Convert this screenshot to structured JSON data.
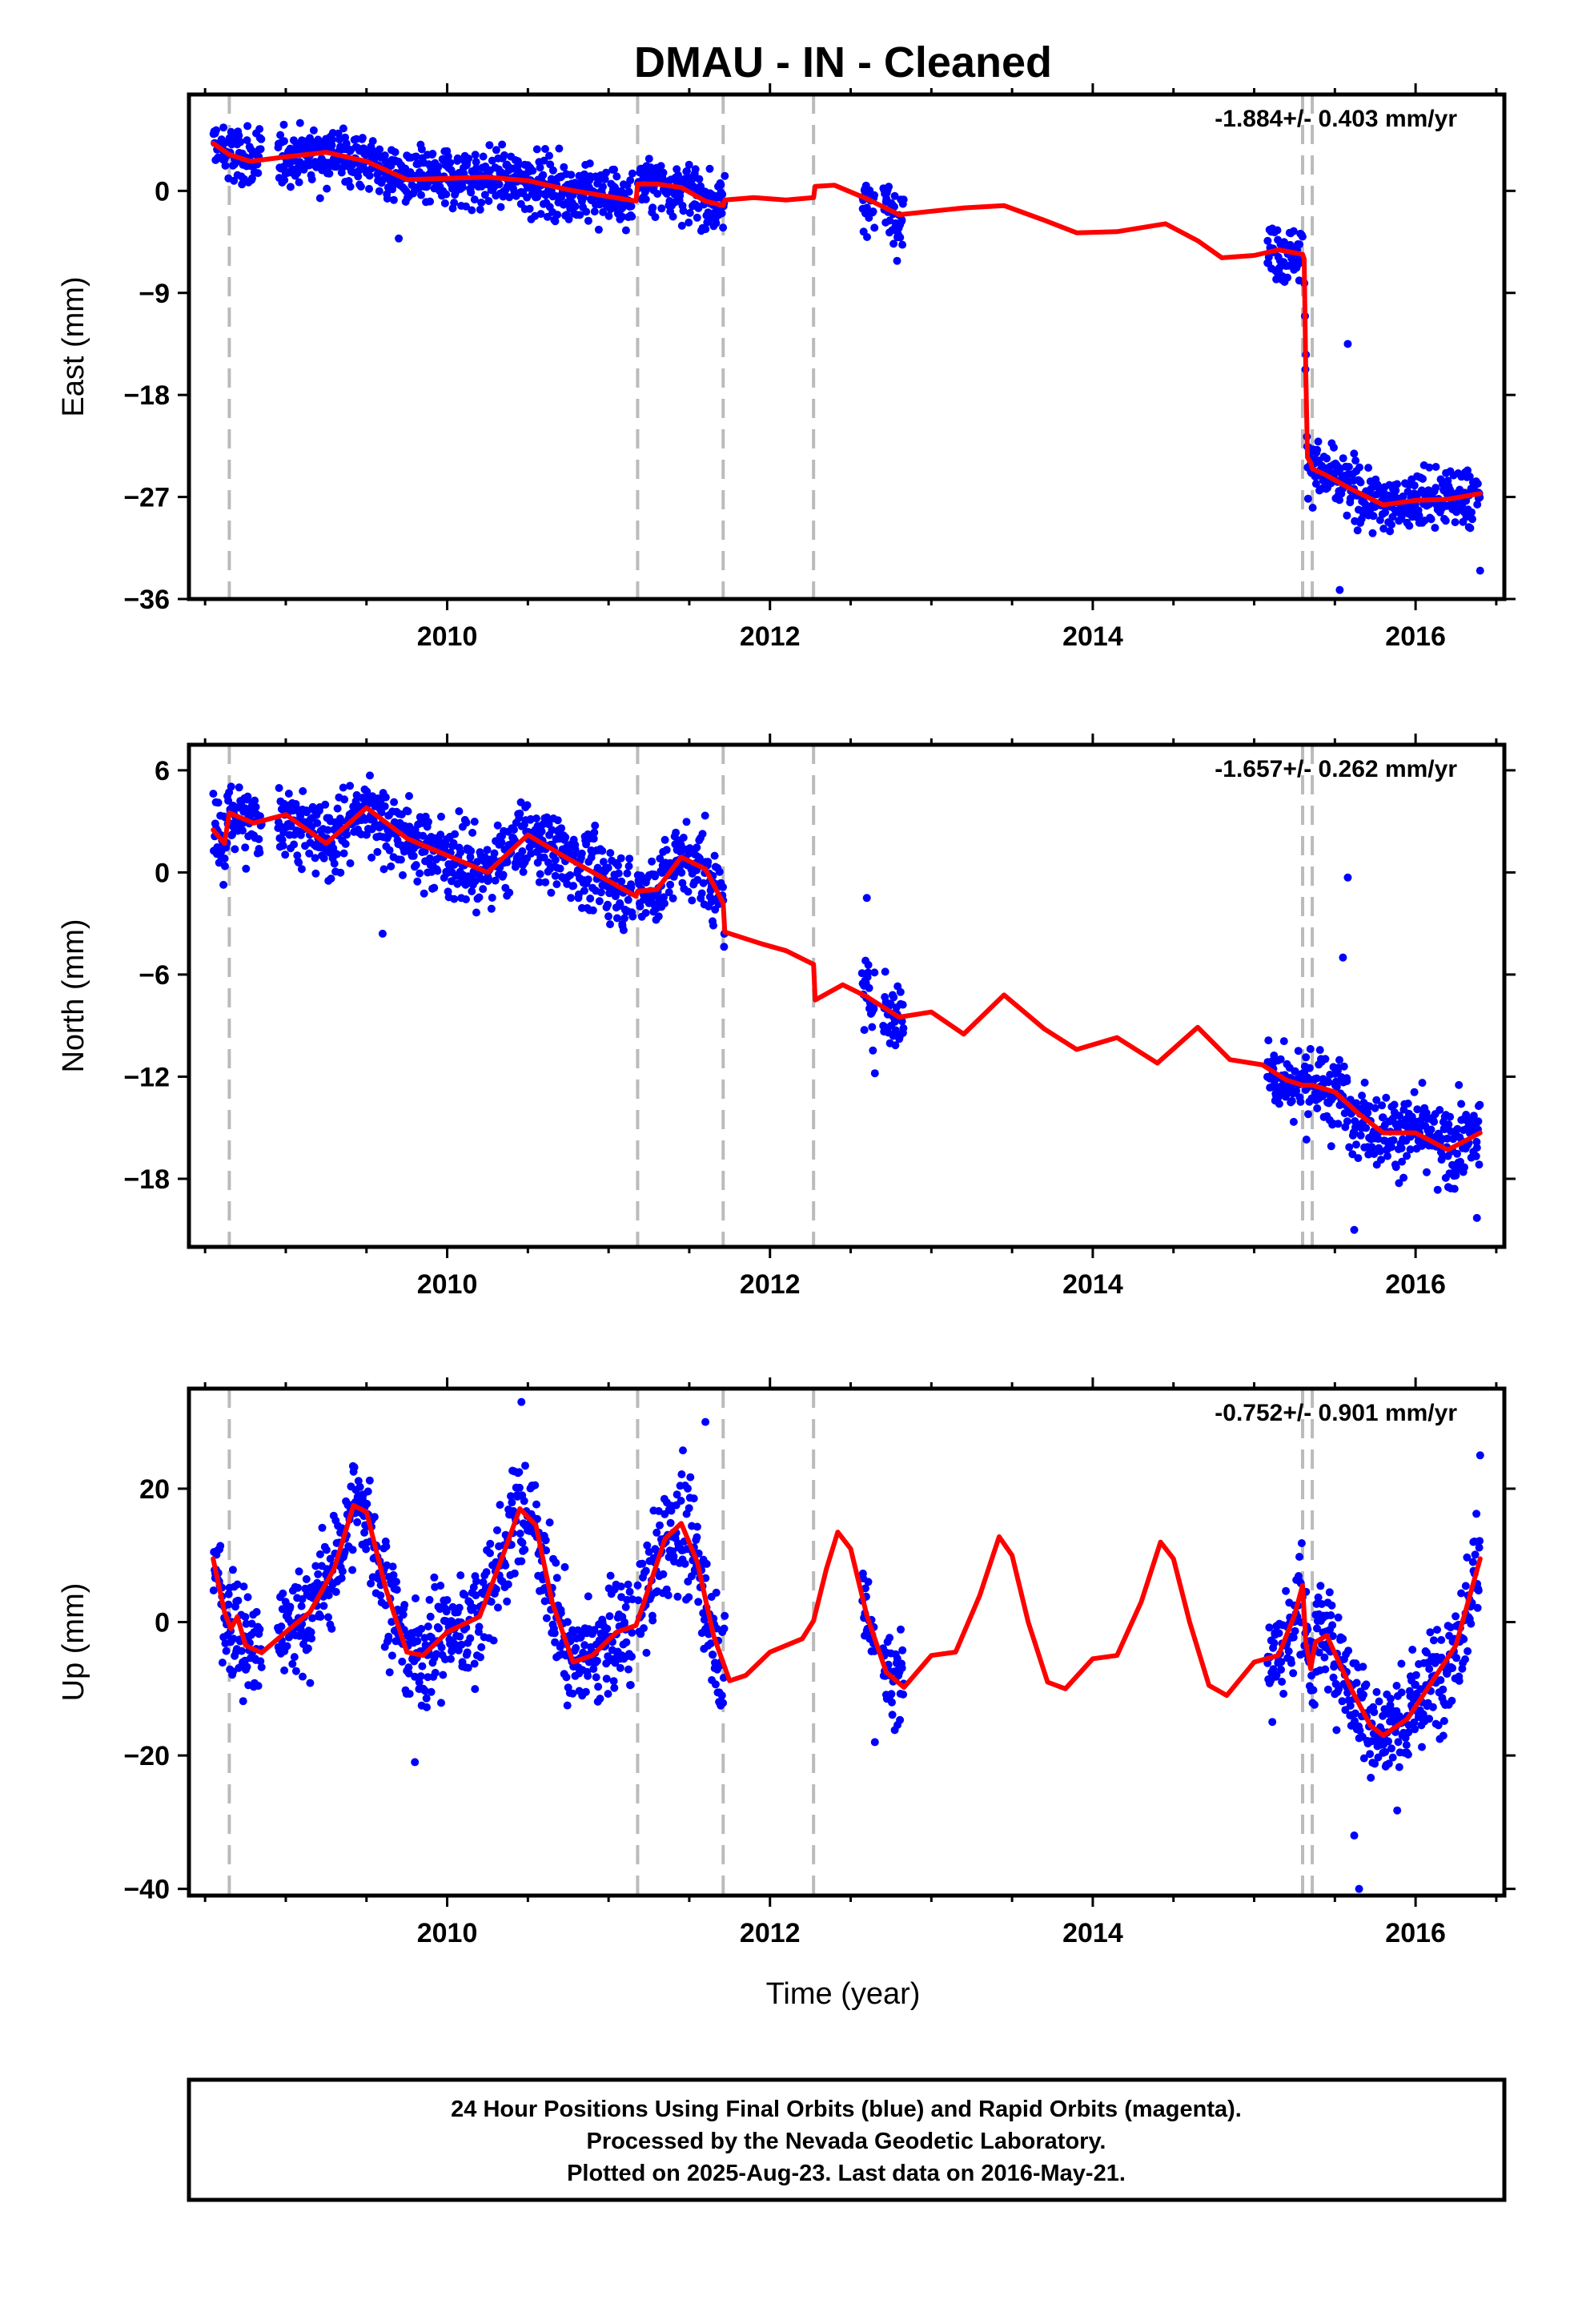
{
  "title": "DMAU  - IN - Cleaned",
  "xlabel": "Time (year)",
  "footer": [
    "24 Hour Positions Using Final Orbits (blue) and Rapid Orbits (magenta).",
    "Processed by the Nevada Geodetic Laboratory.",
    "Plotted on 2025-Aug-23. Last data on 2016-May-21."
  ],
  "colors": {
    "points": "#0000ff",
    "model": "#ff0000",
    "breaks": "#bbbbbb",
    "frame": "#000000"
  },
  "chart_data": [
    {
      "type": "scatter",
      "component": "East",
      "ylabel": "East (mm)",
      "rate_label": "-1.884+/- 0.403 mm/yr",
      "xlim": [
        2008.4,
        2016.55
      ],
      "ylim": [
        -36,
        8.5
      ],
      "yticks": [
        -36,
        -27,
        -18,
        -9,
        0
      ],
      "xticks": [
        2010,
        2012,
        2014,
        2016
      ],
      "breaks": [
        2008.65,
        2011.18,
        2011.71,
        2012.27,
        2015.3,
        2015.36
      ],
      "segments": [
        [
          2008.55,
          2008.85
        ],
        [
          2008.95,
          2011.15
        ],
        [
          2011.18,
          2011.72
        ],
        [
          2012.57,
          2012.65
        ],
        [
          2012.7,
          2012.83
        ],
        [
          2015.08,
          2015.3
        ],
        [
          2015.31,
          2016.4
        ]
      ],
      "noise": 1.3,
      "outliers": [
        [
          2015.58,
          -13.5
        ],
        [
          2015.53,
          -35.2
        ],
        [
          2016.4,
          -33.5
        ],
        [
          2009.7,
          -4.2
        ],
        [
          2012.58,
          -3.6
        ]
      ],
      "model": [
        [
          2008.55,
          4.2
        ],
        [
          2008.65,
          3.2
        ],
        [
          2008.78,
          2.6
        ],
        [
          2009.0,
          3.0
        ],
        [
          2009.25,
          3.4
        ],
        [
          2009.5,
          2.6
        ],
        [
          2009.75,
          1.0
        ],
        [
          2010.0,
          1.1
        ],
        [
          2010.25,
          1.2
        ],
        [
          2010.5,
          0.9
        ],
        [
          2010.75,
          0.1
        ],
        [
          2011.0,
          -0.5
        ],
        [
          2011.17,
          -0.9
        ],
        [
          2011.18,
          0.6
        ],
        [
          2011.3,
          0.6
        ],
        [
          2011.45,
          0.3
        ],
        [
          2011.6,
          -0.9
        ],
        [
          2011.71,
          -1.3
        ],
        [
          2011.72,
          -0.8
        ],
        [
          2011.9,
          -0.6
        ],
        [
          2012.1,
          -0.8
        ],
        [
          2012.27,
          -0.6
        ],
        [
          2012.28,
          0.4
        ],
        [
          2012.4,
          0.5
        ],
        [
          2012.6,
          -0.7
        ],
        [
          2012.8,
          -2.1
        ],
        [
          2013.0,
          -1.8
        ],
        [
          2013.2,
          -1.5
        ],
        [
          2013.45,
          -1.3
        ],
        [
          2013.7,
          -2.6
        ],
        [
          2013.9,
          -3.7
        ],
        [
          2014.15,
          -3.6
        ],
        [
          2014.45,
          -2.9
        ],
        [
          2014.65,
          -4.4
        ],
        [
          2014.8,
          -5.9
        ],
        [
          2015.0,
          -5.7
        ],
        [
          2015.15,
          -5.2
        ],
        [
          2015.3,
          -5.6
        ],
        [
          2015.31,
          -6.0
        ],
        [
          2015.32,
          -16.0
        ],
        [
          2015.33,
          -23.5
        ],
        [
          2015.35,
          -24.0
        ],
        [
          2015.36,
          -24.5
        ],
        [
          2015.45,
          -25.1
        ],
        [
          2015.6,
          -26.3
        ],
        [
          2015.8,
          -27.7
        ],
        [
          2016.0,
          -27.3
        ],
        [
          2016.2,
          -27.2
        ],
        [
          2016.4,
          -26.7
        ]
      ]
    },
    {
      "type": "scatter",
      "component": "North",
      "ylabel": "North (mm)",
      "rate_label": "-1.657+/- 0.262 mm/yr",
      "xlim": [
        2008.4,
        2016.55
      ],
      "ylim": [
        -22,
        7.5
      ],
      "yticks": [
        -18,
        -12,
        -6,
        0,
        6
      ],
      "xticks": [
        2010,
        2012,
        2014,
        2016
      ],
      "breaks": [
        2008.65,
        2011.18,
        2011.71,
        2012.27,
        2015.3,
        2015.36
      ],
      "segments": [
        [
          2008.55,
          2008.85
        ],
        [
          2008.95,
          2011.15
        ],
        [
          2011.18,
          2011.72
        ],
        [
          2012.57,
          2012.65
        ],
        [
          2012.7,
          2012.83
        ],
        [
          2015.08,
          2015.3
        ],
        [
          2015.31,
          2016.4
        ]
      ],
      "noise": 1.1,
      "outliers": [
        [
          2015.58,
          -0.3
        ],
        [
          2015.55,
          -5.0
        ],
        [
          2016.38,
          -20.3
        ],
        [
          2015.62,
          -21.0
        ],
        [
          2009.6,
          -3.6
        ],
        [
          2012.6,
          -1.5
        ],
        [
          2012.65,
          -11.8
        ]
      ],
      "model": [
        [
          2008.55,
          2.5
        ],
        [
          2008.62,
          1.7
        ],
        [
          2008.65,
          3.5
        ],
        [
          2008.8,
          2.9
        ],
        [
          2009.0,
          3.4
        ],
        [
          2009.25,
          1.7
        ],
        [
          2009.5,
          3.8
        ],
        [
          2009.75,
          2.0
        ],
        [
          2010.0,
          1.0
        ],
        [
          2010.25,
          0.0
        ],
        [
          2010.5,
          2.2
        ],
        [
          2010.75,
          0.8
        ],
        [
          2011.0,
          -0.5
        ],
        [
          2011.17,
          -1.4
        ],
        [
          2011.18,
          -1.1
        ],
        [
          2011.3,
          -1.0
        ],
        [
          2011.45,
          0.9
        ],
        [
          2011.6,
          0.2
        ],
        [
          2011.71,
          -1.8
        ],
        [
          2011.72,
          -3.5
        ],
        [
          2011.95,
          -4.2
        ],
        [
          2012.1,
          -4.6
        ],
        [
          2012.27,
          -5.4
        ],
        [
          2012.28,
          -7.5
        ],
        [
          2012.45,
          -6.6
        ],
        [
          2012.6,
          -7.3
        ],
        [
          2012.8,
          -8.5
        ],
        [
          2013.0,
          -8.2
        ],
        [
          2013.2,
          -9.5
        ],
        [
          2013.45,
          -7.2
        ],
        [
          2013.7,
          -9.2
        ],
        [
          2013.9,
          -10.4
        ],
        [
          2014.15,
          -9.7
        ],
        [
          2014.4,
          -11.2
        ],
        [
          2014.65,
          -9.1
        ],
        [
          2014.85,
          -11.0
        ],
        [
          2015.05,
          -11.3
        ],
        [
          2015.2,
          -12.2
        ],
        [
          2015.3,
          -12.5
        ],
        [
          2015.36,
          -12.5
        ],
        [
          2015.5,
          -12.9
        ],
        [
          2015.65,
          -14.2
        ],
        [
          2015.8,
          -15.3
        ],
        [
          2016.0,
          -15.3
        ],
        [
          2016.2,
          -16.3
        ],
        [
          2016.4,
          -15.3
        ]
      ]
    },
    {
      "type": "scatter",
      "component": "Up",
      "ylabel": "Up (mm)",
      "rate_label": "-0.752+/- 0.901 mm/yr",
      "xlim": [
        2008.4,
        2016.55
      ],
      "ylim": [
        -41,
        35
      ],
      "yticks": [
        -40,
        -20,
        0,
        20
      ],
      "xticks": [
        2010,
        2012,
        2014,
        2016
      ],
      "breaks": [
        2008.65,
        2011.18,
        2011.71,
        2012.27,
        2015.3,
        2015.36
      ],
      "segments": [
        [
          2008.55,
          2008.85
        ],
        [
          2008.95,
          2011.15
        ],
        [
          2011.18,
          2011.72
        ],
        [
          2012.57,
          2012.65
        ],
        [
          2012.7,
          2012.83
        ],
        [
          2015.08,
          2015.3
        ],
        [
          2015.31,
          2016.4
        ]
      ],
      "noise": 4.0,
      "outliers": [
        [
          2009.8,
          -21.0
        ],
        [
          2010.46,
          33.0
        ],
        [
          2011.6,
          30.0
        ],
        [
          2015.65,
          -40.0
        ],
        [
          2015.62,
          -32.0
        ],
        [
          2016.4,
          25.0
        ],
        [
          2012.65,
          -18.0
        ]
      ],
      "model": [
        [
          2008.55,
          9.5
        ],
        [
          2008.62,
          1.5
        ],
        [
          2008.66,
          -1.0
        ],
        [
          2008.7,
          0.8
        ],
        [
          2008.75,
          -3.5
        ],
        [
          2008.85,
          -4.6
        ],
        [
          2009.0,
          -1.5
        ],
        [
          2009.15,
          1.5
        ],
        [
          2009.3,
          8.0
        ],
        [
          2009.42,
          17.5
        ],
        [
          2009.5,
          16.5
        ],
        [
          2009.62,
          5.0
        ],
        [
          2009.75,
          -4.5
        ],
        [
          2009.85,
          -5.0
        ],
        [
          2010.0,
          -1.5
        ],
        [
          2010.2,
          0.8
        ],
        [
          2010.33,
          9.0
        ],
        [
          2010.45,
          17.0
        ],
        [
          2010.55,
          14.5
        ],
        [
          2010.65,
          3.0
        ],
        [
          2010.78,
          -6.0
        ],
        [
          2010.9,
          -5.0
        ],
        [
          2011.05,
          -1.5
        ],
        [
          2011.17,
          -0.5
        ],
        [
          2011.22,
          3.0
        ],
        [
          2011.35,
          12.5
        ],
        [
          2011.45,
          14.8
        ],
        [
          2011.55,
          9.0
        ],
        [
          2011.65,
          -2.0
        ],
        [
          2011.75,
          -8.8
        ],
        [
          2011.85,
          -8.0
        ],
        [
          2012.0,
          -4.5
        ],
        [
          2012.2,
          -2.5
        ],
        [
          2012.27,
          0.2
        ],
        [
          2012.35,
          8.0
        ],
        [
          2012.42,
          13.5
        ],
        [
          2012.5,
          11.0
        ],
        [
          2012.6,
          1.0
        ],
        [
          2012.72,
          -7.5
        ],
        [
          2012.83,
          -9.8
        ],
        [
          2013.0,
          -5.0
        ],
        [
          2013.15,
          -4.5
        ],
        [
          2013.3,
          4.0
        ],
        [
          2013.42,
          12.8
        ],
        [
          2013.5,
          10.0
        ],
        [
          2013.6,
          0.0
        ],
        [
          2013.72,
          -9.0
        ],
        [
          2013.83,
          -10.0
        ],
        [
          2014.0,
          -5.5
        ],
        [
          2014.15,
          -5.0
        ],
        [
          2014.3,
          3.0
        ],
        [
          2014.42,
          12.0
        ],
        [
          2014.5,
          9.5
        ],
        [
          2014.6,
          0.0
        ],
        [
          2014.72,
          -9.5
        ],
        [
          2014.83,
          -11.0
        ],
        [
          2015.0,
          -6.0
        ],
        [
          2015.15,
          -5.0
        ],
        [
          2015.25,
          1.0
        ],
        [
          2015.3,
          5.5
        ],
        [
          2015.32,
          -3.0
        ],
        [
          2015.35,
          -7.0
        ],
        [
          2015.38,
          -3.0
        ],
        [
          2015.45,
          -2.0
        ],
        [
          2015.6,
          -10.0
        ],
        [
          2015.72,
          -15.5
        ],
        [
          2015.8,
          -17.0
        ],
        [
          2015.95,
          -14.5
        ],
        [
          2016.1,
          -9.0
        ],
        [
          2016.25,
          -3.5
        ],
        [
          2016.4,
          9.5
        ]
      ]
    }
  ]
}
